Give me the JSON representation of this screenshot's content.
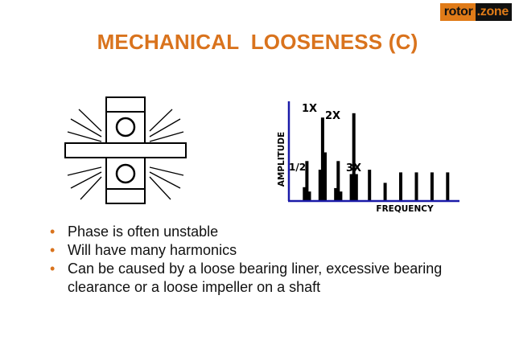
{
  "logo": {
    "part1": "rotor",
    "part2": ".zone"
  },
  "title": "MECHANICAL  LOOSENESS (C)",
  "bullets": [
    "Phase is often unstable",
    "Will have many harmonics",
    "Can be caused by a loose bearing liner, excessive bearing clearance or a loose impeller on a shaft"
  ],
  "colors": {
    "accent": "#d9731d",
    "axis": "#1a1aa8",
    "text": "#111111"
  },
  "chart_data": {
    "type": "bar",
    "xlabel": "FREQUENCY",
    "ylabel": "AMPLITUDE",
    "annotations": [
      "1/2",
      "1X",
      "2X",
      "3X"
    ],
    "x": [
      0.42,
      0.5,
      0.58,
      0.92,
      1.0,
      1.08,
      1.42,
      1.5,
      1.58,
      1.92,
      2.0,
      2.08,
      2.5,
      3.0,
      3.5,
      4.0,
      4.5,
      5.0
    ],
    "values": [
      0.15,
      0.45,
      0.1,
      0.35,
      0.95,
      0.55,
      0.14,
      0.45,
      0.1,
      0.3,
      1.0,
      0.3,
      0.35,
      0.2,
      0.32,
      0.32,
      0.32,
      0.32
    ],
    "ylim": [
      0,
      1.1
    ],
    "xlim": [
      0,
      5.3
    ]
  }
}
